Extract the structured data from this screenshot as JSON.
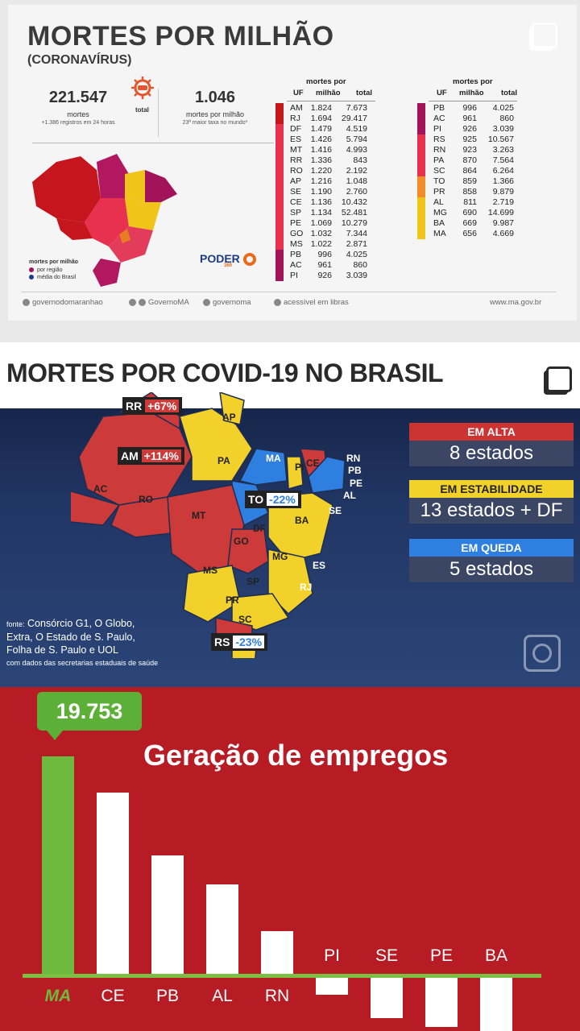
{
  "panel1": {
    "title": "MORTES POR MILHÃO",
    "subtitle": "(CORONAVÍRUS)",
    "total_label": "total",
    "stat_left": {
      "value": "221.547",
      "label": "mortes",
      "note": "+1.386 registros em 24 horas"
    },
    "stat_right": {
      "value": "1.046",
      "label": "mortes por milhão",
      "note": "23ª maior taxa no mundo*"
    },
    "table_headers": {
      "uf": "UF",
      "mortes": "mortes por",
      "milhao": "milhão",
      "total": "total"
    },
    "table_left": [
      [
        "AM",
        "1.824",
        "7.673"
      ],
      [
        "RJ",
        "1.694",
        "29.417"
      ],
      [
        "DF",
        "1.479",
        "4.519"
      ],
      [
        "ES",
        "1.426",
        "5.794"
      ],
      [
        "MT",
        "1.416",
        "4.993"
      ],
      [
        "RR",
        "1.336",
        "843"
      ],
      [
        "RO",
        "1.220",
        "2.192"
      ],
      [
        "AP",
        "1.216",
        "1.048"
      ],
      [
        "SE",
        "1.190",
        "2.760"
      ],
      [
        "CE",
        "1.136",
        "10.432"
      ],
      [
        "SP",
        "1.134",
        "52.481"
      ],
      [
        "PE",
        "1.069",
        "10.279"
      ],
      [
        "GO",
        "1.032",
        "7.344"
      ],
      [
        "MS",
        "1.022",
        "2.871"
      ],
      [
        "PB",
        "996",
        "4.025"
      ],
      [
        "AC",
        "961",
        "860"
      ],
      [
        "PI",
        "926",
        "3.039"
      ]
    ],
    "table_right": [
      [
        "PB",
        "996",
        "4.025"
      ],
      [
        "AC",
        "961",
        "860"
      ],
      [
        "PI",
        "926",
        "3.039"
      ],
      [
        "RS",
        "925",
        "10.567"
      ],
      [
        "RN",
        "923",
        "3.263"
      ],
      [
        "PA",
        "870",
        "7.564"
      ],
      [
        "SC",
        "864",
        "6.264"
      ],
      [
        "TO",
        "859",
        "1.366"
      ],
      [
        "PR",
        "858",
        "9.879"
      ],
      [
        "AL",
        "811",
        "2.719"
      ],
      [
        "MG",
        "690",
        "14.699"
      ],
      [
        "BA",
        "669",
        "9.987"
      ],
      [
        "MA",
        "656",
        "4.669"
      ]
    ],
    "legend": {
      "title": "mortes por milhão",
      "item1": "por região",
      "item2": "média do Brasil"
    },
    "logo": "PODER",
    "logo_sub": "360",
    "footer": [
      "governodomaranhao",
      "GovernoMA",
      "governoma",
      "acessível em libras",
      "www.ma.gov.br"
    ]
  },
  "panel2": {
    "title": "MORTES POR COVID-19 NO BRASIL",
    "states": {
      "RR": "RR",
      "AP": "AP",
      "AM": "AM",
      "PA": "PA",
      "MA": "MA",
      "CE": "CE",
      "RN": "RN",
      "PB": "PB",
      "PI": "PI",
      "PE": "PE",
      "AL": "AL",
      "AC": "AC",
      "RO": "RO",
      "TO": "TO",
      "SE": "SE",
      "BA": "BA",
      "MT": "MT",
      "DF": "DF",
      "GO": "GO",
      "MG": "MG",
      "ES": "ES",
      "MS": "MS",
      "SP": "SP",
      "RJ": "RJ",
      "PR": "PR",
      "SC": "SC",
      "RS": "RS"
    },
    "tags": {
      "rr": "+67%",
      "am": "+114%",
      "to": "-22%",
      "rs": "-23%"
    },
    "boxes": [
      {
        "title": "EM ALTA",
        "value": "8 estados",
        "color": "#cc3333"
      },
      {
        "title": "EM ESTABILIDADE",
        "value": "13 estados + DF",
        "color": "#f2d12b"
      },
      {
        "title": "EM QUEDA",
        "value": "5 estados",
        "color": "#2f7fe0"
      }
    ],
    "source_prefix": "fonte:",
    "source_lines": [
      "Consórcio G1, O Globo,",
      "Extra, O Estado de S. Paulo,",
      "Folha de S. Paulo e UOL"
    ],
    "source_note": "com dados das secretarias estaduais de saúde"
  },
  "panel3": {
    "title": "Geração de empregos",
    "callout": "19.753",
    "chart_data": {
      "type": "bar",
      "categories": [
        "MA",
        "CE",
        "PB",
        "AL",
        "RN",
        "PI",
        "SE",
        "PE",
        "BA"
      ],
      "values": [
        19753,
        16500,
        10800,
        8200,
        4000,
        -1500,
        -3600,
        -4400,
        -4800
      ],
      "title": "Geração de empregos"
    }
  }
}
